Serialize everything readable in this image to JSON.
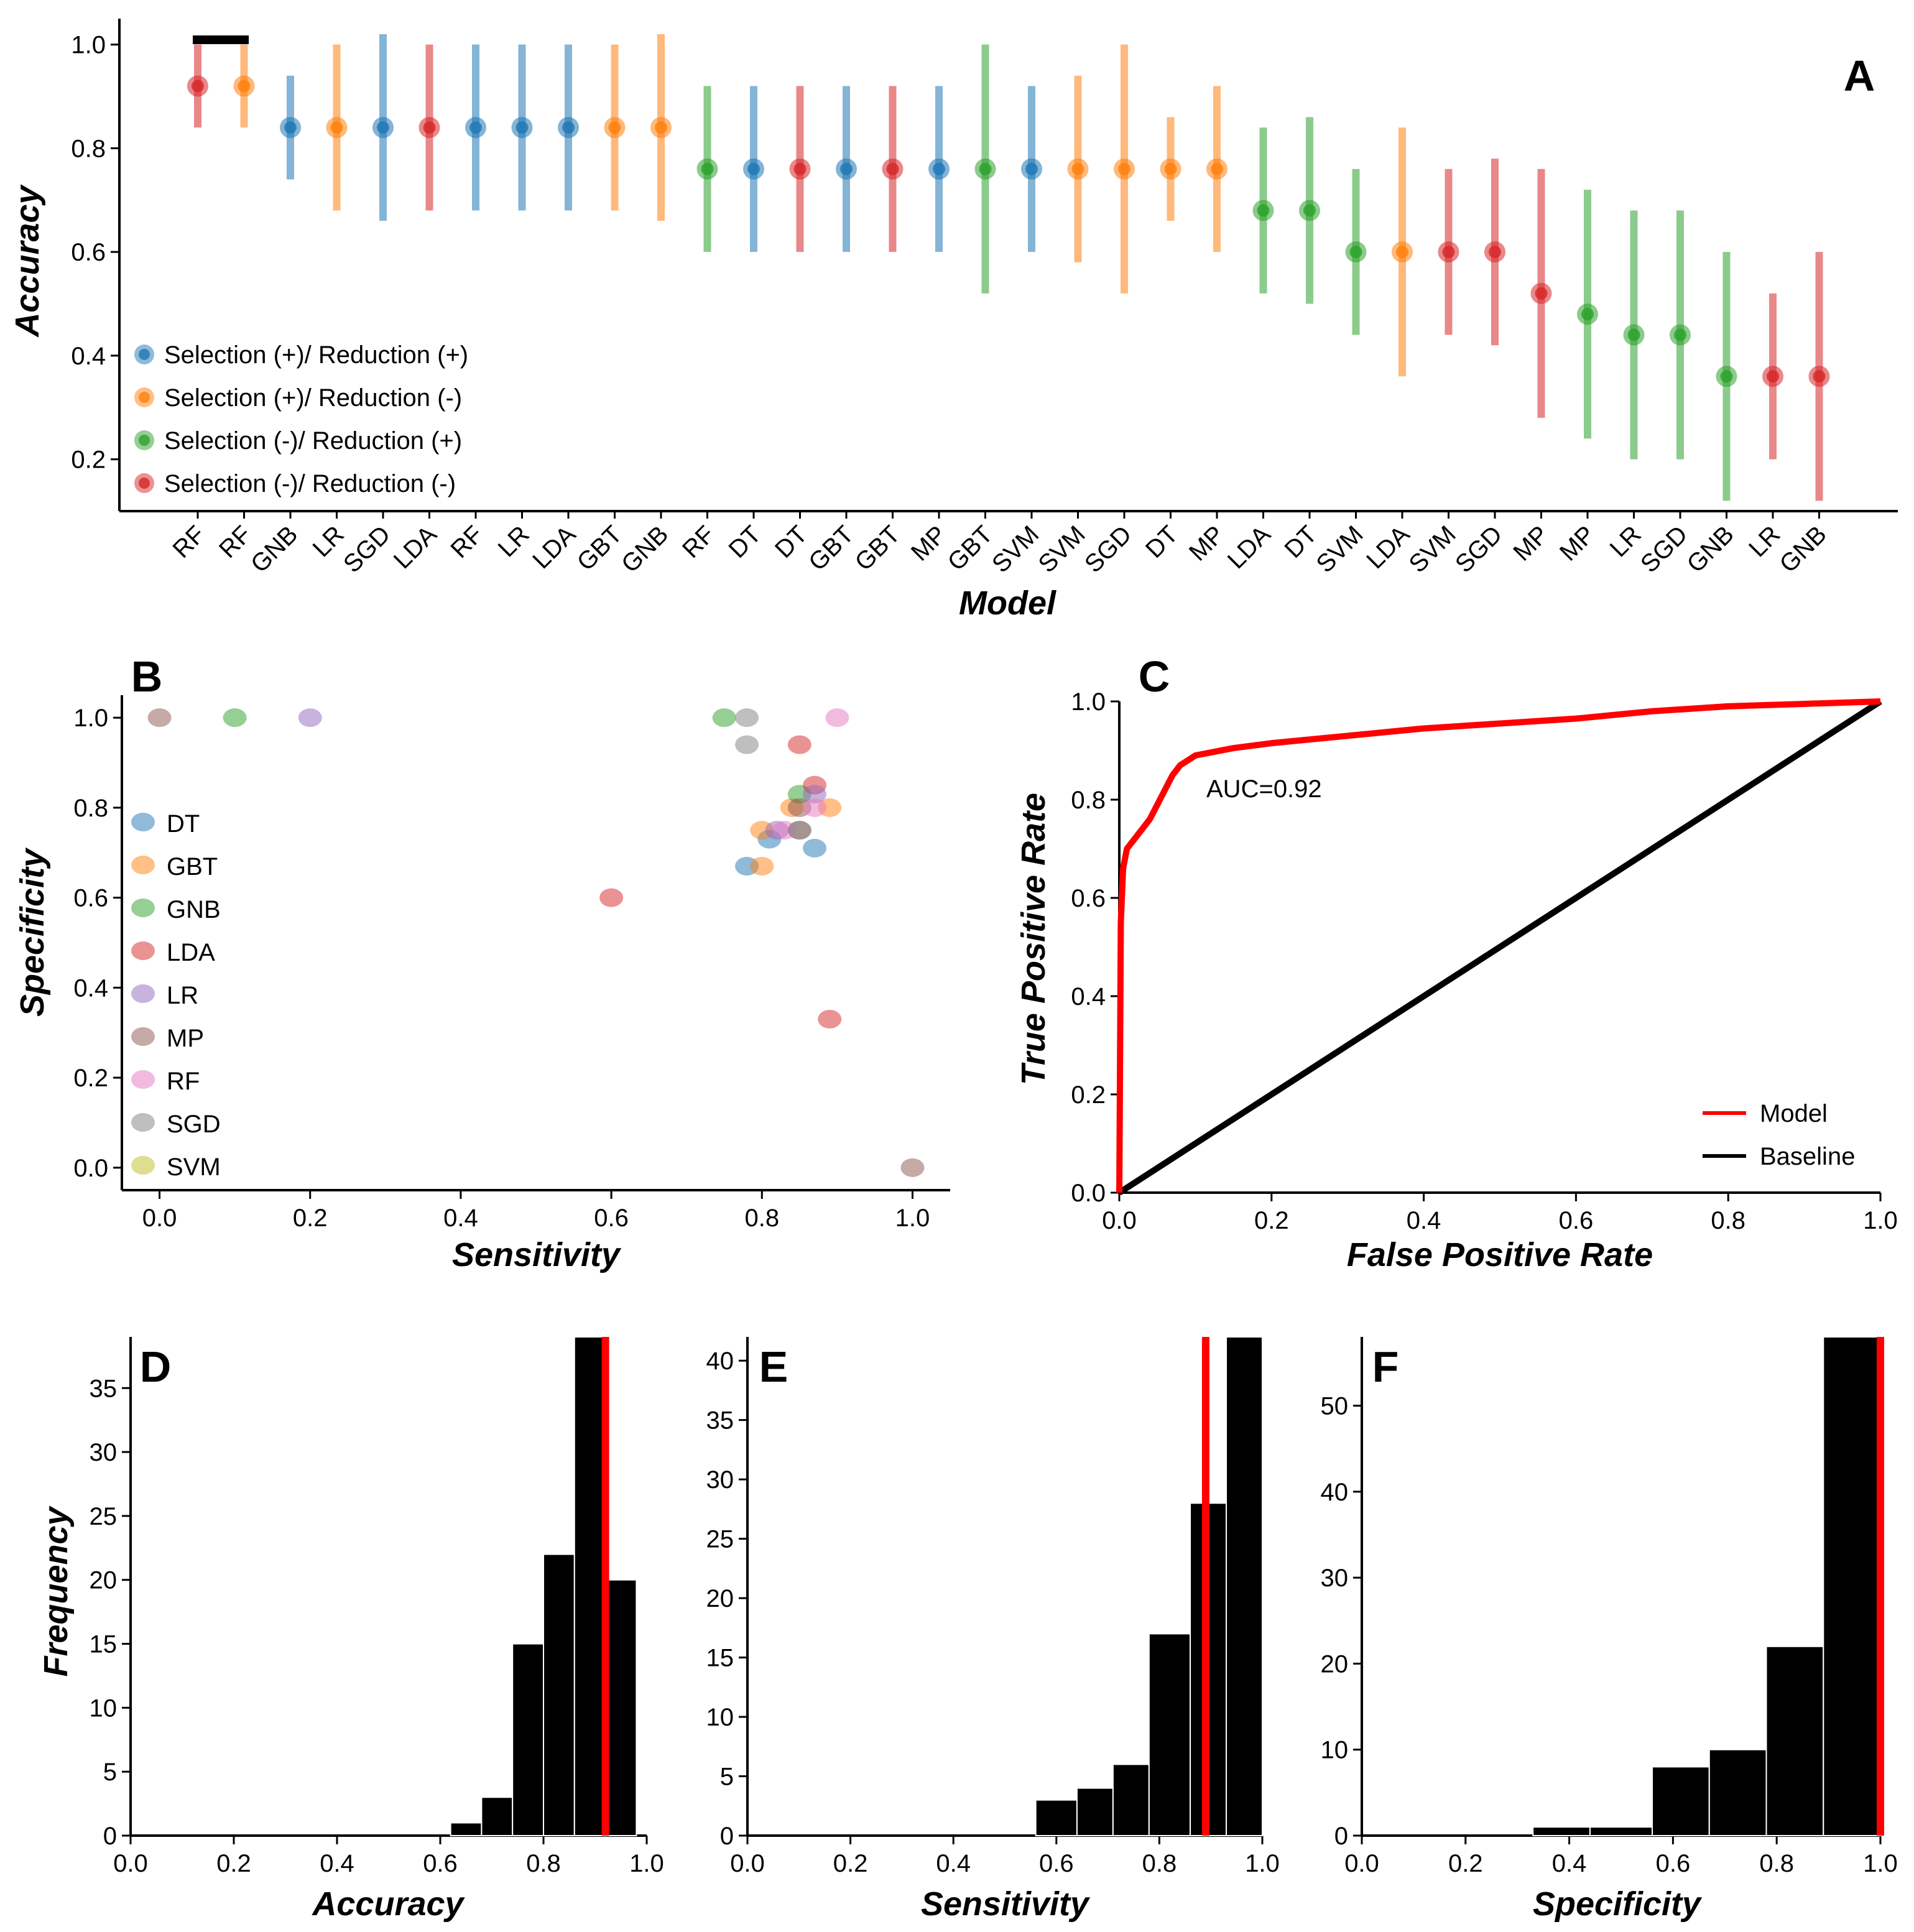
{
  "chart_data": [
    {
      "panel": "A",
      "type": "scatter",
      "xlabel": "Model",
      "ylabel": "Accuracy",
      "ylim": [
        0.1,
        1.05
      ],
      "yticks": [
        0.2,
        0.4,
        0.6,
        0.8,
        1.0
      ],
      "legend_placement": "lower-left",
      "legend": [
        {
          "label": "Selection (+)/ Reduction (+)",
          "color": "#1f77b4"
        },
        {
          "label": "Selection (+)/ Reduction (-)",
          "color": "#ff7f0e"
        },
        {
          "label": "Selection (-)/ Reduction (+)",
          "color": "#2ca02c"
        },
        {
          "label": "Selection (-)/ Reduction (-)",
          "color": "#d62728"
        }
      ],
      "points": [
        {
          "model": "RF",
          "group": 3,
          "value": 0.92,
          "low": 0.84,
          "high": 1.0
        },
        {
          "model": "RF",
          "group": 1,
          "value": 0.92,
          "low": 0.84,
          "high": 1.0
        },
        {
          "model": "GNB",
          "group": 0,
          "value": 0.84,
          "low": 0.74,
          "high": 0.94
        },
        {
          "model": "LR",
          "group": 1,
          "value": 0.84,
          "low": 0.68,
          "high": 1.0
        },
        {
          "model": "SGD",
          "group": 0,
          "value": 0.84,
          "low": 0.66,
          "high": 1.02
        },
        {
          "model": "LDA",
          "group": 3,
          "value": 0.84,
          "low": 0.68,
          "high": 1.0
        },
        {
          "model": "RF",
          "group": 0,
          "value": 0.84,
          "low": 0.68,
          "high": 1.0
        },
        {
          "model": "LR",
          "group": 0,
          "value": 0.84,
          "low": 0.68,
          "high": 1.0
        },
        {
          "model": "LDA",
          "group": 0,
          "value": 0.84,
          "low": 0.68,
          "high": 1.0
        },
        {
          "model": "GBT",
          "group": 1,
          "value": 0.84,
          "low": 0.68,
          "high": 1.0
        },
        {
          "model": "GNB",
          "group": 1,
          "value": 0.84,
          "low": 0.66,
          "high": 1.02
        },
        {
          "model": "RF",
          "group": 2,
          "value": 0.76,
          "low": 0.6,
          "high": 0.92
        },
        {
          "model": "DT",
          "group": 0,
          "value": 0.76,
          "low": 0.6,
          "high": 0.92
        },
        {
          "model": "DT",
          "group": 3,
          "value": 0.76,
          "low": 0.6,
          "high": 0.92
        },
        {
          "model": "GBT",
          "group": 0,
          "value": 0.76,
          "low": 0.6,
          "high": 0.92
        },
        {
          "model": "GBT",
          "group": 3,
          "value": 0.76,
          "low": 0.6,
          "high": 0.92
        },
        {
          "model": "MP",
          "group": 0,
          "value": 0.76,
          "low": 0.6,
          "high": 0.92
        },
        {
          "model": "GBT",
          "group": 2,
          "value": 0.76,
          "low": 0.52,
          "high": 1.0
        },
        {
          "model": "SVM",
          "group": 0,
          "value": 0.76,
          "low": 0.6,
          "high": 0.92
        },
        {
          "model": "SVM",
          "group": 1,
          "value": 0.76,
          "low": 0.58,
          "high": 0.94
        },
        {
          "model": "SGD",
          "group": 1,
          "value": 0.76,
          "low": 0.52,
          "high": 1.0
        },
        {
          "model": "DT",
          "group": 1,
          "value": 0.76,
          "low": 0.66,
          "high": 0.86
        },
        {
          "model": "MP",
          "group": 1,
          "value": 0.76,
          "low": 0.6,
          "high": 0.92
        },
        {
          "model": "LDA",
          "group": 2,
          "value": 0.68,
          "low": 0.52,
          "high": 0.84
        },
        {
          "model": "DT",
          "group": 2,
          "value": 0.68,
          "low": 0.5,
          "high": 0.86
        },
        {
          "model": "SVM",
          "group": 2,
          "value": 0.6,
          "low": 0.44,
          "high": 0.76
        },
        {
          "model": "LDA",
          "group": 1,
          "value": 0.6,
          "low": 0.36,
          "high": 0.84
        },
        {
          "model": "SVM",
          "group": 3,
          "value": 0.6,
          "low": 0.44,
          "high": 0.76
        },
        {
          "model": "SGD",
          "group": 3,
          "value": 0.6,
          "low": 0.42,
          "high": 0.78
        },
        {
          "model": "MP",
          "group": 3,
          "value": 0.52,
          "low": 0.28,
          "high": 0.76
        },
        {
          "model": "MP",
          "group": 2,
          "value": 0.48,
          "low": 0.24,
          "high": 0.72
        },
        {
          "model": "LR",
          "group": 2,
          "value": 0.44,
          "low": 0.2,
          "high": 0.68
        },
        {
          "model": "SGD",
          "group": 2,
          "value": 0.44,
          "low": 0.2,
          "high": 0.68
        },
        {
          "model": "GNB",
          "group": 2,
          "value": 0.36,
          "low": 0.12,
          "high": 0.6
        },
        {
          "model": "LR",
          "group": 3,
          "value": 0.36,
          "low": 0.2,
          "high": 0.52
        },
        {
          "model": "GNB",
          "group": 3,
          "value": 0.36,
          "low": 0.12,
          "high": 0.6
        }
      ]
    },
    {
      "panel": "B",
      "type": "scatter",
      "xlabel": "Sensitivity",
      "ylabel": "Specificity",
      "xlim": [
        -0.05,
        1.05
      ],
      "ylim": [
        -0.05,
        1.05
      ],
      "xticks": [
        0.0,
        0.2,
        0.4,
        0.6,
        0.8,
        1.0
      ],
      "yticks": [
        0.0,
        0.2,
        0.4,
        0.6,
        0.8,
        1.0
      ],
      "legend_placement": "left",
      "series": [
        {
          "name": "DT",
          "color": "#1f77b4",
          "points": [
            [
              0.78,
              0.67
            ],
            [
              0.81,
              0.73
            ],
            [
              0.87,
              0.71
            ]
          ]
        },
        {
          "name": "GBT",
          "color": "#ff7f0e",
          "points": [
            [
              0.8,
              0.67
            ],
            [
              0.8,
              0.75
            ],
            [
              0.84,
              0.8
            ],
            [
              0.89,
              0.8
            ]
          ]
        },
        {
          "name": "GNB",
          "color": "#2ca02c",
          "points": [
            [
              0.1,
              1.0
            ],
            [
              0.75,
              1.0
            ],
            [
              0.85,
              0.83
            ]
          ]
        },
        {
          "name": "LDA",
          "color": "#d62728",
          "points": [
            [
              0.6,
              0.6
            ],
            [
              0.85,
              0.94
            ],
            [
              0.87,
              0.85
            ],
            [
              0.89,
              0.33
            ]
          ]
        },
        {
          "name": "LR",
          "color": "#9467bd",
          "points": [
            [
              0.2,
              1.0
            ],
            [
              0.82,
              0.75
            ],
            [
              0.87,
              0.83
            ]
          ]
        },
        {
          "name": "MP",
          "color": "#8c564b",
          "points": [
            [
              0.0,
              1.0
            ],
            [
              0.85,
              0.75
            ],
            [
              0.85,
              0.8
            ],
            [
              1.0,
              0.0
            ]
          ]
        },
        {
          "name": "RF",
          "color": "#e377c2",
          "points": [
            [
              0.83,
              0.75
            ],
            [
              0.87,
              0.8
            ],
            [
              0.9,
              1.0
            ]
          ]
        },
        {
          "name": "SGD",
          "color": "#7f7f7f",
          "points": [
            [
              0.78,
              1.0
            ],
            [
              0.78,
              0.94
            ],
            [
              0.85,
              0.75
            ]
          ]
        },
        {
          "name": "SVM",
          "color": "#bcbd22",
          "points": []
        }
      ]
    },
    {
      "panel": "C",
      "type": "line",
      "xlabel": "False Positive Rate",
      "ylabel": "True Positive Rate",
      "xlim": [
        0,
        1
      ],
      "ylim": [
        0,
        1
      ],
      "xticks": [
        0.0,
        0.2,
        0.4,
        0.6,
        0.8,
        1.0
      ],
      "yticks": [
        0.0,
        0.2,
        0.4,
        0.6,
        0.8,
        1.0
      ],
      "annotation": "AUC=0.92",
      "legend_placement": "bottom-right",
      "series": [
        {
          "name": "Model",
          "color": "#ff0000",
          "x": [
            0,
            0.002,
            0.005,
            0.01,
            0.02,
            0.03,
            0.04,
            0.05,
            0.06,
            0.07,
            0.08,
            0.09,
            0.1,
            0.15,
            0.2,
            0.3,
            0.4,
            0.5,
            0.6,
            0.7,
            0.8,
            0.9,
            1.0
          ],
          "y": [
            0,
            0.55,
            0.66,
            0.7,
            0.72,
            0.74,
            0.76,
            0.79,
            0.82,
            0.85,
            0.87,
            0.88,
            0.89,
            0.905,
            0.915,
            0.93,
            0.945,
            0.955,
            0.965,
            0.98,
            0.99,
            0.995,
            1.0
          ]
        },
        {
          "name": "Baseline",
          "color": "#000000",
          "x": [
            0,
            1
          ],
          "y": [
            0,
            1
          ]
        }
      ]
    },
    {
      "panel": "D",
      "type": "bar",
      "xlabel": "Accuracy",
      "ylabel": "Frequency",
      "xlim": [
        0,
        1
      ],
      "ylim": [
        0,
        39
      ],
      "xticks": [
        0.0,
        0.2,
        0.4,
        0.6,
        0.8,
        1.0
      ],
      "yticks": [
        0,
        5,
        10,
        15,
        20,
        25,
        30,
        35
      ],
      "bins": [
        [
          0.62,
          0.68,
          1
        ],
        [
          0.68,
          0.74,
          3
        ],
        [
          0.74,
          0.8,
          15
        ],
        [
          0.8,
          0.86,
          22
        ],
        [
          0.86,
          0.92,
          39
        ],
        [
          0.92,
          0.98,
          20
        ]
      ],
      "reference_line": 0.92
    },
    {
      "panel": "E",
      "type": "bar",
      "xlabel": "Sensitivity",
      "xlim": [
        0,
        1
      ],
      "ylim": [
        0,
        42
      ],
      "xticks": [
        0.0,
        0.2,
        0.4,
        0.6,
        0.8,
        1.0
      ],
      "yticks": [
        0,
        5,
        10,
        15,
        20,
        25,
        30,
        35,
        40
      ],
      "bins": [
        [
          0.56,
          0.64,
          3
        ],
        [
          0.64,
          0.71,
          4
        ],
        [
          0.71,
          0.78,
          6
        ],
        [
          0.78,
          0.86,
          17
        ],
        [
          0.86,
          0.93,
          28
        ],
        [
          0.93,
          1.0,
          42
        ]
      ],
      "reference_line": 0.89
    },
    {
      "panel": "F",
      "type": "bar",
      "xlabel": "Specificity",
      "xlim": [
        0,
        1
      ],
      "ylim": [
        0,
        58
      ],
      "xticks": [
        0.0,
        0.2,
        0.4,
        0.6,
        0.8,
        1.0
      ],
      "yticks": [
        0,
        10,
        20,
        30,
        40,
        50
      ],
      "bins": [
        [
          0.33,
          0.44,
          1
        ],
        [
          0.44,
          0.56,
          1
        ],
        [
          0.56,
          0.67,
          8
        ],
        [
          0.67,
          0.78,
          10
        ],
        [
          0.78,
          0.89,
          22
        ],
        [
          0.89,
          1.0,
          58
        ]
      ],
      "reference_line": 1.0
    }
  ]
}
